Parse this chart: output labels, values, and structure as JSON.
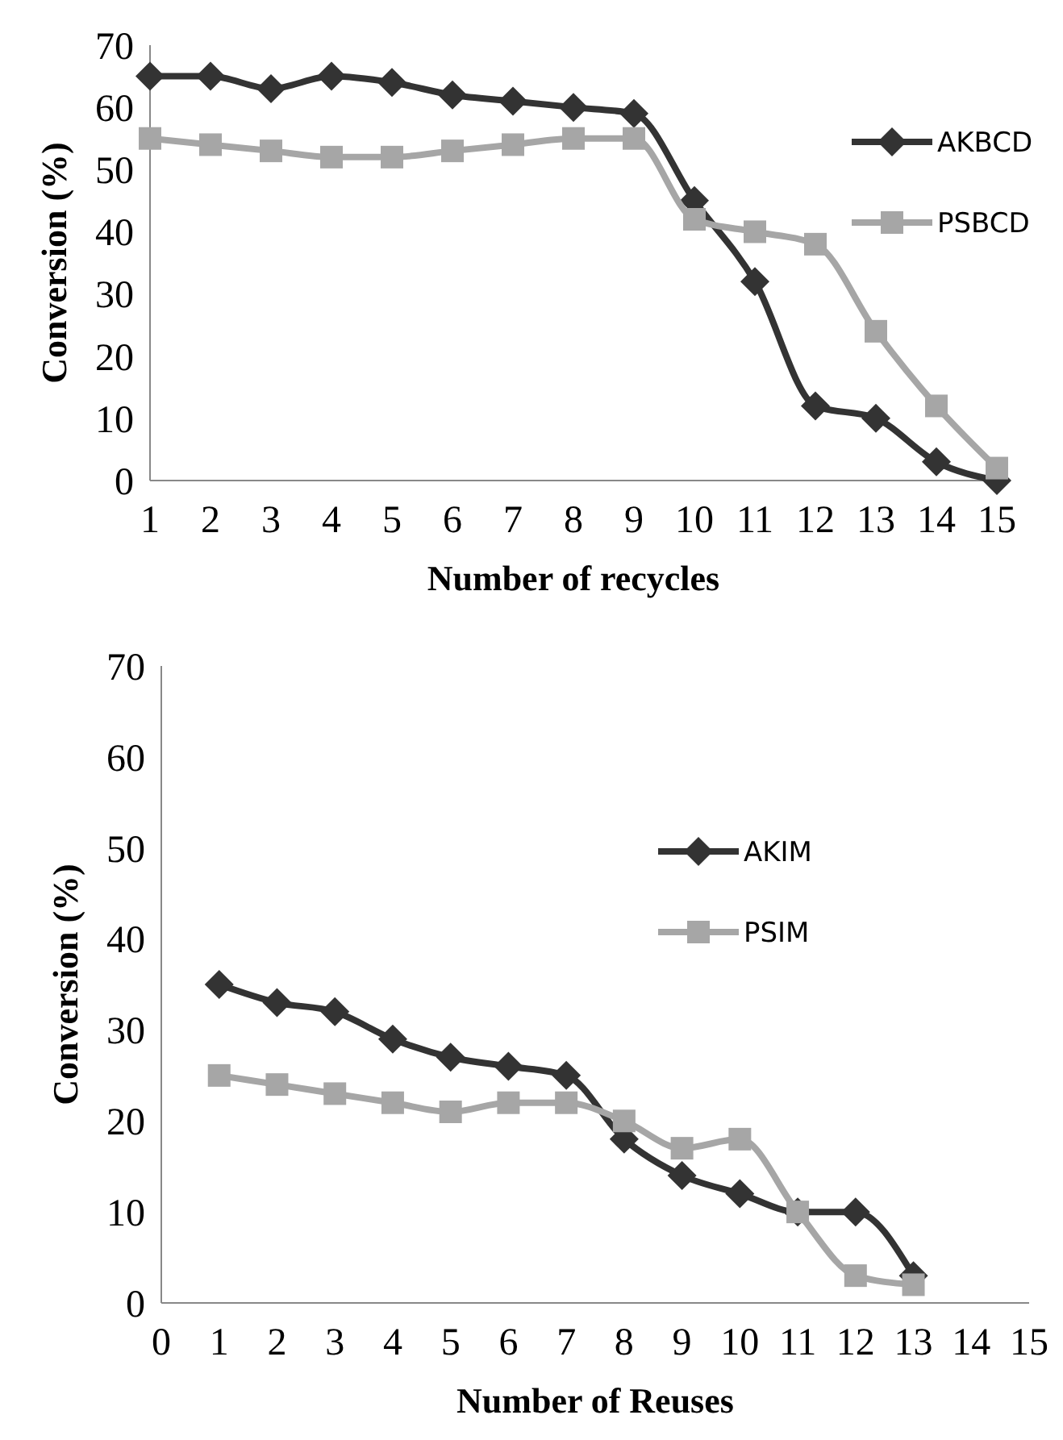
{
  "chart_data": [
    {
      "type": "line",
      "xlabel": "Number of recycles",
      "ylabel": "Conversion (%)",
      "x": [
        1,
        2,
        3,
        4,
        5,
        6,
        7,
        8,
        9,
        10,
        11,
        12,
        13,
        14,
        15
      ],
      "xlim": [
        1,
        15
      ],
      "xticks": [
        1,
        2,
        3,
        4,
        5,
        6,
        7,
        8,
        9,
        10,
        11,
        12,
        13,
        14,
        15
      ],
      "ylim": [
        0,
        70
      ],
      "yticks": [
        0,
        10,
        20,
        30,
        40,
        50,
        60,
        70
      ],
      "grid": false,
      "legend": "right",
      "series": [
        {
          "name": "AKBCD",
          "color": "#333333",
          "marker": "diamond",
          "values": [
            65,
            65,
            63,
            65,
            64,
            62,
            61,
            60,
            59,
            45,
            32,
            12,
            10,
            3,
            0
          ]
        },
        {
          "name": "PSBCD",
          "color": "#a6a6a6",
          "marker": "square",
          "values": [
            55,
            54,
            53,
            52,
            52,
            53,
            54,
            55,
            55,
            42,
            40,
            38,
            24,
            12,
            2
          ]
        }
      ]
    },
    {
      "type": "line",
      "xlabel": "Number of Reuses",
      "ylabel": "Conversion (%)",
      "x": [
        1,
        2,
        3,
        4,
        5,
        6,
        7,
        8,
        9,
        10,
        11,
        12,
        13
      ],
      "xlim": [
        0,
        15
      ],
      "xticks": [
        0,
        1,
        2,
        3,
        4,
        5,
        6,
        7,
        8,
        9,
        10,
        11,
        12,
        13,
        14,
        15
      ],
      "ylim": [
        0,
        70
      ],
      "yticks": [
        0,
        10,
        20,
        30,
        40,
        50,
        60,
        70
      ],
      "grid": false,
      "legend": "right",
      "series": [
        {
          "name": "AKIM",
          "color": "#333333",
          "marker": "diamond",
          "values": [
            35,
            33,
            32,
            29,
            27,
            26,
            25,
            18,
            14,
            12,
            10,
            10,
            3
          ]
        },
        {
          "name": "PSIM",
          "color": "#a6a6a6",
          "marker": "square",
          "values": [
            25,
            24,
            23,
            22,
            21,
            22,
            22,
            20,
            17,
            18,
            10,
            3,
            2
          ]
        }
      ]
    }
  ]
}
